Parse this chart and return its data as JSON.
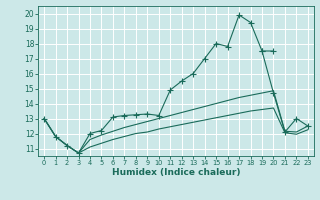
{
  "xlabel": "Humidex (Indice chaleur)",
  "bg_color": "#cce8e8",
  "line_color": "#1a6b5a",
  "grid_color": "#ffffff",
  "xlim": [
    -0.5,
    23.5
  ],
  "ylim": [
    10.5,
    20.5
  ],
  "yticks": [
    11,
    12,
    13,
    14,
    15,
    16,
    17,
    18,
    19,
    20
  ],
  "xticks": [
    0,
    1,
    2,
    3,
    4,
    5,
    6,
    7,
    8,
    9,
    10,
    11,
    12,
    13,
    14,
    15,
    16,
    17,
    18,
    19,
    20,
    21,
    22,
    23
  ],
  "curve1_x": [
    0,
    1,
    2,
    3,
    4,
    5,
    6,
    7,
    8,
    9,
    10,
    11,
    12,
    13,
    14,
    15,
    16,
    17,
    18,
    19,
    20
  ],
  "curve1_y": [
    13.0,
    11.8,
    11.2,
    10.7,
    12.0,
    12.2,
    13.1,
    13.2,
    13.25,
    13.3,
    13.2,
    14.9,
    15.5,
    16.0,
    17.0,
    18.0,
    17.8,
    19.9,
    19.4,
    17.5,
    17.5
  ],
  "curve2_x": [
    19,
    20,
    21,
    22,
    23
  ],
  "curve2_y": [
    17.5,
    14.7,
    12.1,
    13.0,
    12.5
  ],
  "trend1_x": [
    0,
    1,
    2,
    3,
    4,
    5,
    6,
    7,
    8,
    9,
    10,
    11,
    12,
    13,
    14,
    15,
    16,
    17,
    18,
    19,
    20,
    21,
    22,
    23
  ],
  "trend1_y": [
    13.0,
    11.8,
    11.2,
    10.7,
    11.6,
    11.9,
    12.15,
    12.4,
    12.6,
    12.8,
    13.0,
    13.2,
    13.4,
    13.6,
    13.8,
    14.0,
    14.2,
    14.4,
    14.55,
    14.7,
    14.85,
    12.15,
    12.1,
    12.5
  ],
  "trend2_x": [
    0,
    1,
    2,
    3,
    4,
    5,
    6,
    7,
    8,
    9,
    10,
    11,
    12,
    13,
    14,
    15,
    16,
    17,
    18,
    19,
    20,
    21,
    22,
    23
  ],
  "trend2_y": [
    13.0,
    11.8,
    11.2,
    10.7,
    11.1,
    11.35,
    11.6,
    11.8,
    12.0,
    12.1,
    12.3,
    12.45,
    12.6,
    12.75,
    12.9,
    13.05,
    13.2,
    13.35,
    13.5,
    13.6,
    13.7,
    12.05,
    11.95,
    12.25
  ]
}
